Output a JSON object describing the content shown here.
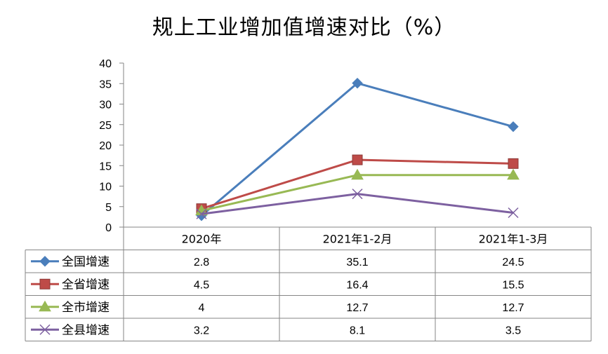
{
  "chart_data": {
    "type": "line",
    "title": "规上工业增加值增速对比（%）",
    "categories": [
      "2020年",
      "2021年1-2月",
      "2021年1-3月"
    ],
    "ylim": [
      0,
      40
    ],
    "yticks": [
      0,
      5,
      10,
      15,
      20,
      25,
      30,
      35,
      40
    ],
    "grid": false,
    "data_table": true,
    "series": [
      {
        "name": "全国增速",
        "values": [
          2.8,
          35.1,
          24.5
        ],
        "labels": [
          "2.8",
          "35.1",
          "24.5"
        ],
        "color": "#4a7ebb",
        "marker": "diamond"
      },
      {
        "name": "全省增速",
        "values": [
          4.5,
          16.4,
          15.5
        ],
        "labels": [
          "4.5",
          "16.4",
          "15.5"
        ],
        "color": "#be4b48",
        "marker": "square"
      },
      {
        "name": "全市增速",
        "values": [
          4,
          12.7,
          12.7
        ],
        "labels": [
          "4",
          "12.7",
          "12.7"
        ],
        "color": "#98b954",
        "marker": "triangle"
      },
      {
        "name": "全县增速",
        "values": [
          3.2,
          8.1,
          3.5
        ],
        "labels": [
          "3.2",
          "8.1",
          "3.5"
        ],
        "color": "#7d60a0",
        "marker": "x"
      }
    ]
  }
}
